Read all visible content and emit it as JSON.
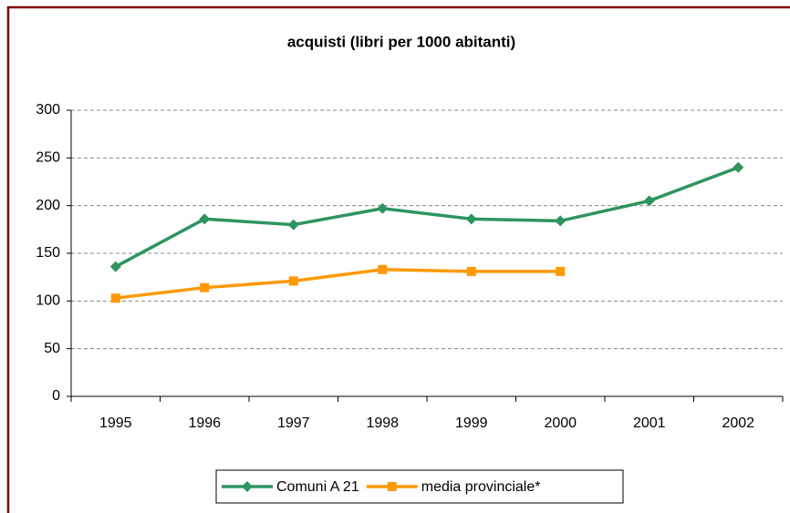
{
  "chart_data": {
    "type": "line",
    "title": "acquisti (libri per 1000 abitanti)",
    "categories": [
      "1995",
      "1996",
      "1997",
      "1998",
      "1999",
      "2000",
      "2001",
      "2002"
    ],
    "series": [
      {
        "name": "Comuni A 21",
        "color": "#2e9460",
        "marker": "diamond",
        "values": [
          136,
          186,
          180,
          197,
          186,
          184,
          205,
          240
        ]
      },
      {
        "name": "media provinciale*",
        "color": "#ff9900",
        "marker": "square",
        "values": [
          103,
          114,
          121,
          133,
          131,
          131,
          null,
          null
        ]
      }
    ],
    "ylim": [
      0,
      300
    ],
    "yticks": [
      0,
      50,
      100,
      150,
      200,
      250,
      300
    ],
    "grid": true,
    "legend": "bottom"
  }
}
